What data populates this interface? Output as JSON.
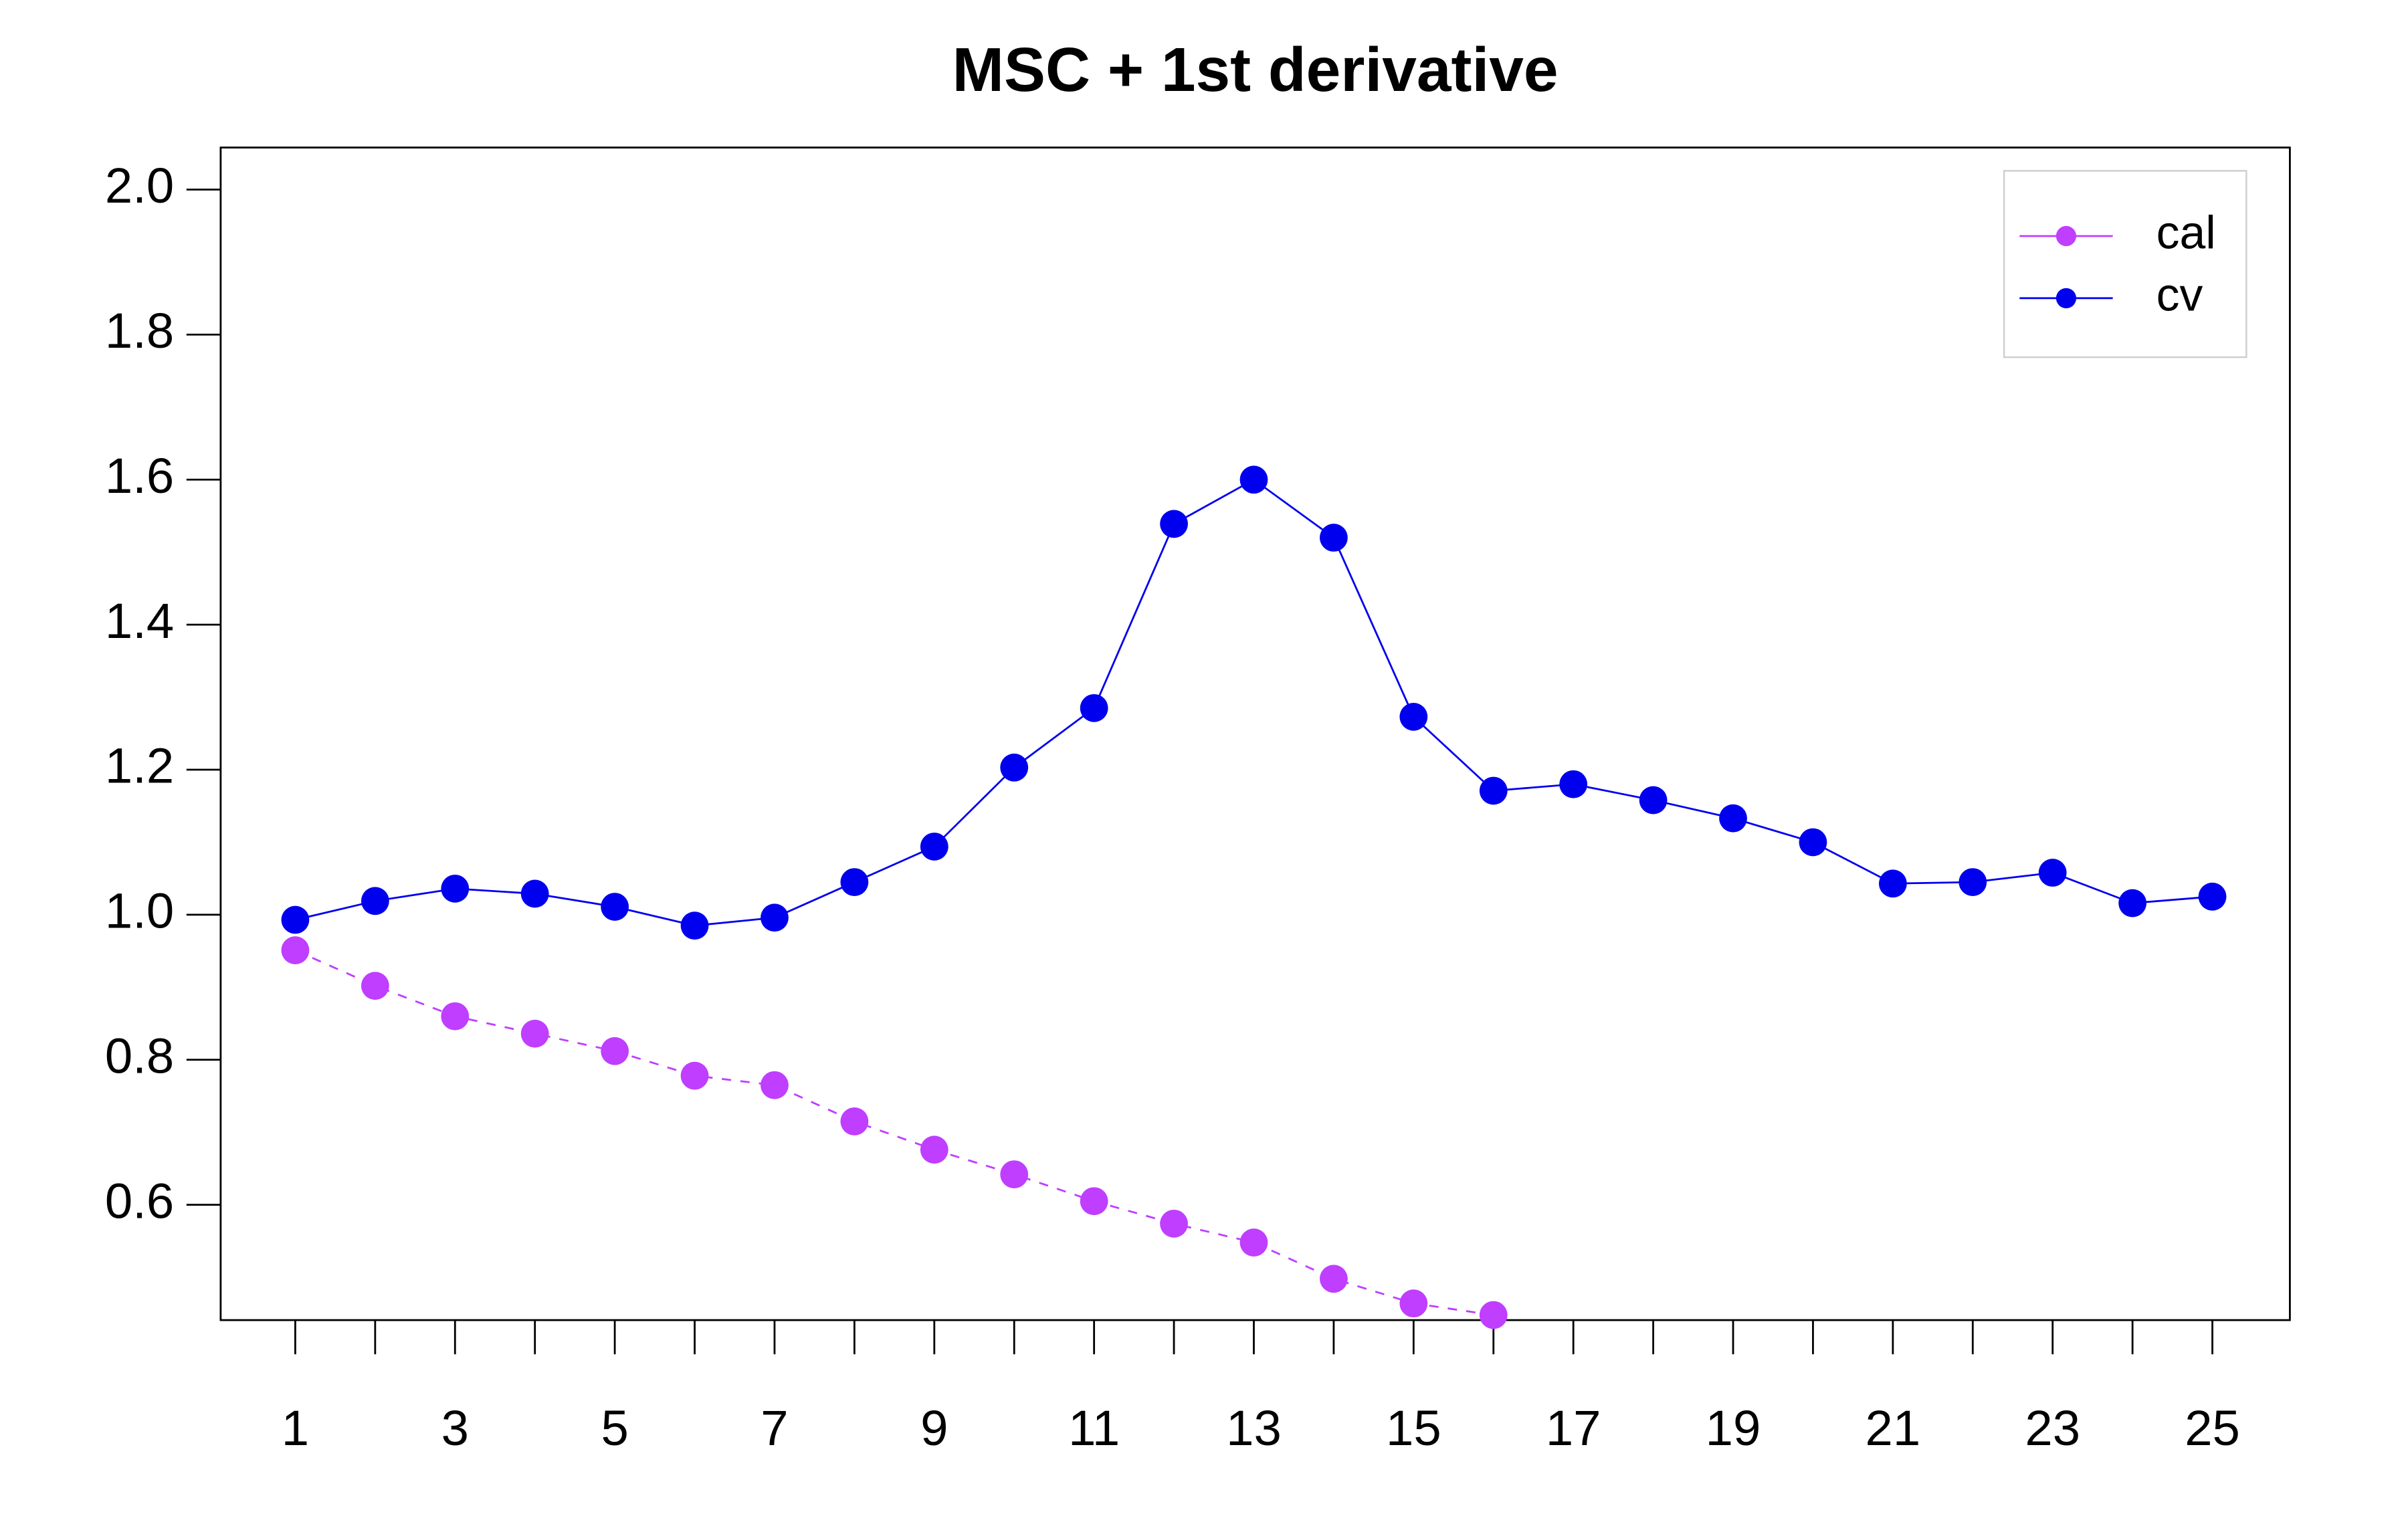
{
  "chart_data": {
    "type": "line",
    "title": "MSC + 1st derivative",
    "x": [
      1,
      2,
      3,
      4,
      5,
      6,
      7,
      8,
      9,
      10,
      11,
      12,
      13,
      14,
      15,
      16,
      17,
      18,
      19,
      20,
      21,
      22,
      23,
      24,
      25
    ],
    "series": [
      {
        "name": "cal",
        "color": "#bf3eff",
        "values": [
          0.951,
          0.902,
          0.86,
          0.836,
          0.812,
          0.778,
          0.765,
          0.715,
          0.676,
          0.642,
          0.605,
          0.574,
          0.548,
          0.498,
          0.464,
          0.448,
          null,
          null,
          null,
          null,
          null,
          null,
          null,
          null,
          null
        ]
      },
      {
        "name": "cv",
        "color": "#0000ee",
        "values": [
          0.993,
          1.019,
          1.036,
          1.029,
          1.011,
          0.985,
          0.996,
          1.045,
          1.094,
          1.203,
          1.285,
          1.539,
          1.6,
          1.52,
          1.273,
          1.171,
          1.18,
          1.158,
          1.133,
          1.1,
          1.043,
          1.045,
          1.058,
          1.016,
          1.025
        ]
      }
    ],
    "xlim": [
      0.066,
      25.97
    ],
    "xticks": [
      1,
      3,
      5,
      7,
      9,
      11,
      13,
      15,
      17,
      19,
      21,
      23,
      25
    ],
    "xminor_ticks": [
      2,
      4,
      6,
      8,
      10,
      12,
      14,
      16,
      18,
      20,
      22,
      24
    ],
    "ylim": [
      0.441,
      2.058
    ],
    "yticks": [
      {
        "value": 0.6,
        "label": "0.6"
      },
      {
        "value": 0.8,
        "label": "0.8"
      },
      {
        "value": 1.0,
        "label": "1.0"
      },
      {
        "value": 1.2,
        "label": "1.2"
      },
      {
        "value": 1.4,
        "label": "1.4"
      },
      {
        "value": 1.6,
        "label": "1.6"
      },
      {
        "value": 1.8,
        "label": "1.8"
      },
      {
        "value": 2.0,
        "label": "2.0"
      }
    ],
    "legend": "top-right"
  }
}
